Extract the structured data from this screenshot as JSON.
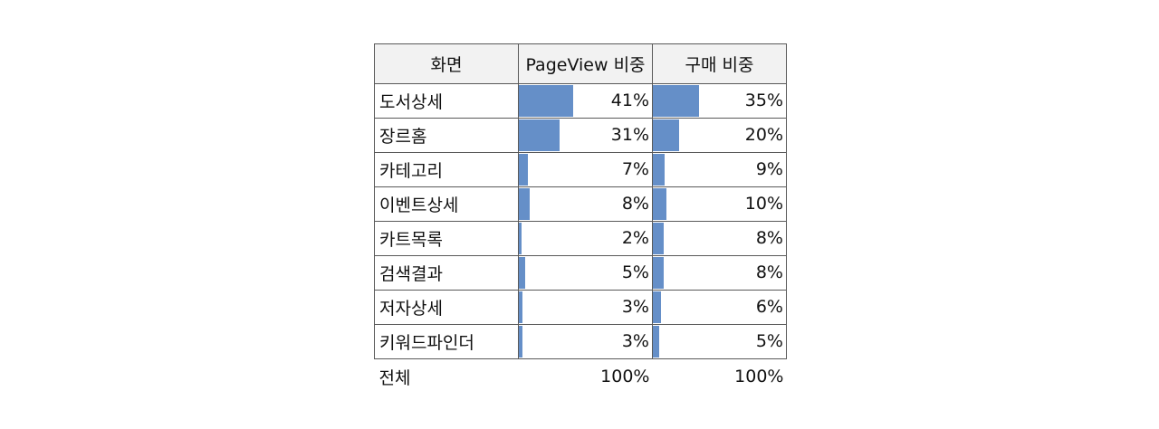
{
  "chart_data": {
    "type": "table",
    "headers": [
      "화면",
      "PageView 비중",
      "구매 비중"
    ],
    "rows": [
      {
        "name": "도서상세",
        "pageview": 41,
        "pageview_label": "41%",
        "purchase": 35,
        "purchase_label": "35%"
      },
      {
        "name": "장르홈",
        "pageview": 31,
        "pageview_label": "31%",
        "purchase": 20,
        "purchase_label": "20%"
      },
      {
        "name": "카테고리",
        "pageview": 7,
        "pageview_label": "7%",
        "purchase": 9,
        "purchase_label": "9%"
      },
      {
        "name": "이벤트상세",
        "pageview": 8,
        "pageview_label": "8%",
        "purchase": 10,
        "purchase_label": "10%"
      },
      {
        "name": "카트목록",
        "pageview": 2,
        "pageview_label": "2%",
        "purchase": 8,
        "purchase_label": "8%"
      },
      {
        "name": "검색결과",
        "pageview": 5,
        "pageview_label": "5%",
        "purchase": 8,
        "purchase_label": "8%"
      },
      {
        "name": "저자상세",
        "pageview": 3,
        "pageview_label": "3%",
        "purchase": 6,
        "purchase_label": "6%"
      },
      {
        "name": "키워드파인더",
        "pageview": 3,
        "pageview_label": "3%",
        "purchase": 5,
        "purchase_label": "5%"
      }
    ],
    "total": {
      "name": "전체",
      "pageview_label": "100%",
      "purchase_label": "100%"
    },
    "bar_scale_max": 100,
    "bar_color": "#658fc8",
    "header_bg": "#f2f2f2"
  }
}
